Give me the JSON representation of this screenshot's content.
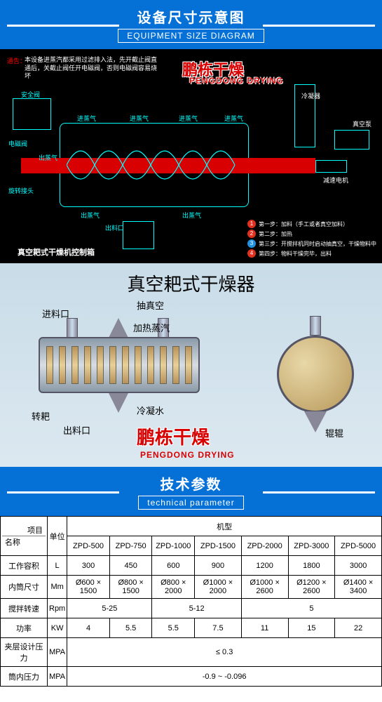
{
  "header1": {
    "cn": "设备尺寸示意图",
    "en": "EQUIPMENT SIZE DIAGRAM",
    "bg": "#0570d6"
  },
  "header2": {
    "cn": "技术参数",
    "en": "technical parameter",
    "bg": "#0570d6"
  },
  "logo": {
    "cn": "鹏栋干燥",
    "en": "PENGDONG DRYING",
    "color": "#d80000"
  },
  "cad": {
    "bg": "#000000",
    "line_color": "#00ffff",
    "shaft_color": "#d80000",
    "warn_label": "通告：",
    "warn_text": "本设备进蒸汽都采用过滤排入法，先开截止阀直通后，关截止阀任开电磁阀，否则电磁阀容易烧坏",
    "control_title": "真空耙式干燥机控制箱",
    "labels": {
      "anquanfa": "安全阀",
      "dianciafa": "电磁阀",
      "jinzhengqi": "进蒸气",
      "chuzhengqi": "出蒸气",
      "xuanzhuan": "旋转接头",
      "chuliaokou": "出料口",
      "lengningqi": "冷凝器",
      "zhenkongbeng": "真空泵",
      "jiansu": "减速电机"
    },
    "steps": [
      {
        "n": "1",
        "c": "#e03020",
        "t": "第一步：加料（手工或者真空加料）"
      },
      {
        "n": "2",
        "c": "#e03020",
        "t": "第二步：加热"
      },
      {
        "n": "3",
        "c": "#2090e0",
        "t": "第三步：开搅拌机同时启动抽真空，干燥物料中"
      },
      {
        "n": "4",
        "c": "#e03020",
        "t": "第四步：物料干燥完毕，出料"
      }
    ]
  },
  "dia2": {
    "title": "真空耙式干燥器",
    "labels": {
      "jinliao": "进料口",
      "chouzhenk": "抽真空",
      "jiare": "加热蒸汽",
      "zhuanba": "转耙",
      "chuliao": "出料口",
      "lengning": "冷凝水",
      "gungun": "辊辊"
    }
  },
  "table": {
    "corner_top": "项目",
    "corner_bottom": "名称",
    "unit_hdr": "单位",
    "model_hdr": "机型",
    "models": [
      "ZPD-500",
      "ZPD-750",
      "ZPD-1000",
      "ZPD-1500",
      "ZPD-2000",
      "ZPD-3000",
      "ZPD-5000"
    ],
    "rows": [
      {
        "name": "工作容积",
        "unit": "L",
        "vals": [
          "300",
          "450",
          "600",
          "900",
          "1200",
          "1800",
          "3000"
        ],
        "spans": [
          1,
          1,
          1,
          1,
          1,
          1,
          1
        ]
      },
      {
        "name": "内筒尺寸",
        "unit": "Mm",
        "vals": [
          "Ø600 × 1500",
          "Ø800 × 1500",
          "Ø800 × 2000",
          "Ø1000 × 2000",
          "Ø1000 × 2600",
          "Ø1200 × 2600",
          "Ø1400 × 3400"
        ],
        "spans": [
          1,
          1,
          1,
          1,
          1,
          1,
          1
        ]
      },
      {
        "name": "搅拌转速",
        "unit": "Rpm",
        "vals": [
          "5-25",
          "5-12",
          "5"
        ],
        "spans": [
          2,
          2,
          3
        ]
      },
      {
        "name": "功率",
        "unit": "KW",
        "vals": [
          "4",
          "5.5",
          "5.5",
          "7.5",
          "11",
          "15",
          "22"
        ],
        "spans": [
          1,
          1,
          1,
          1,
          1,
          1,
          1
        ]
      },
      {
        "name": "夹层设计压力",
        "unit": "MPA",
        "vals": [
          "≤ 0.3"
        ],
        "spans": [
          7
        ]
      },
      {
        "name": "筒内压力",
        "unit": "MPA",
        "vals": [
          "-0.9 ~ -0.096"
        ],
        "spans": [
          7
        ]
      }
    ]
  }
}
